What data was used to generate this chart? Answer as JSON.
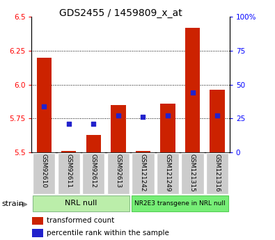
{
  "title": "GDS2455 / 1459809_x_at",
  "samples": [
    "GSM92610",
    "GSM92611",
    "GSM92612",
    "GSM92613",
    "GSM121242",
    "GSM121249",
    "GSM121315",
    "GSM121316"
  ],
  "red_values": [
    6.2,
    5.51,
    5.63,
    5.85,
    5.51,
    5.86,
    6.42,
    5.96
  ],
  "blue_values": [
    34,
    21,
    21,
    27,
    26,
    27,
    44,
    27
  ],
  "group1_label": "NRL null",
  "group2_label": "NR2E3 transgene in NRL null",
  "ylim_left": [
    5.5,
    6.5
  ],
  "ylim_right": [
    0,
    100
  ],
  "yticks_left": [
    5.5,
    5.75,
    6.0,
    6.25,
    6.5
  ],
  "yticks_right": [
    0,
    25,
    50,
    75,
    100
  ],
  "bar_bottom": 5.5,
  "bar_color": "#cc2200",
  "blue_color": "#2222cc",
  "bg_xticklabels": "#cccccc",
  "bg_group1": "#bbeeaa",
  "bg_group2": "#77ee77",
  "strain_label": "strain",
  "legend_red": "transformed count",
  "legend_blue": "percentile rank within the sample"
}
